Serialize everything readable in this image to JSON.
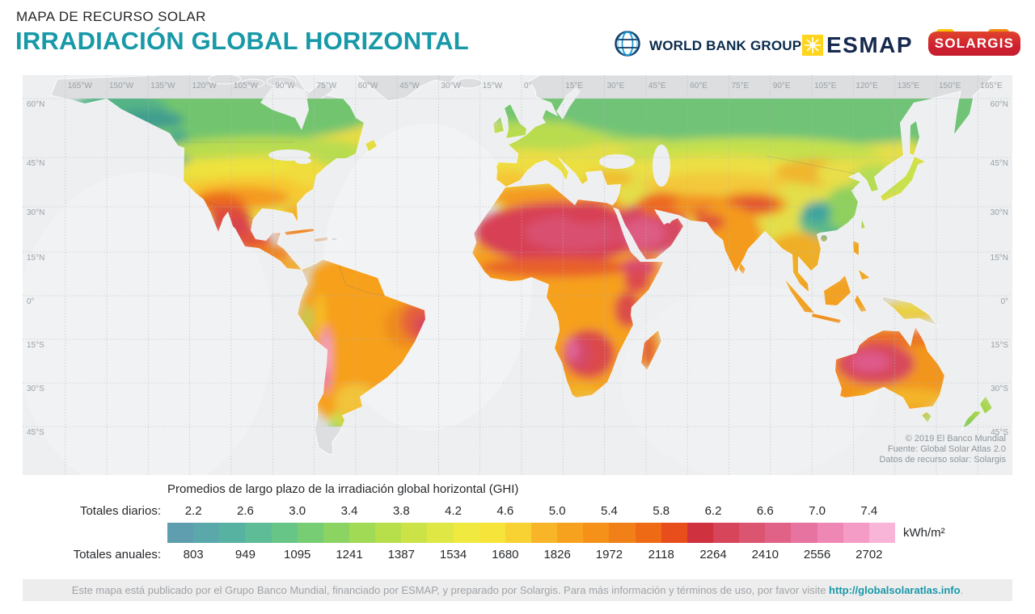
{
  "header": {
    "kicker": "MAPA DE RECURSO SOLAR",
    "title": "IRRADIACIÓN GLOBAL HORIZONTAL"
  },
  "logos": {
    "world_bank": "WORLD BANK GROUP",
    "esmap": "ESMAP",
    "solargis": "SOLARGIS"
  },
  "map": {
    "lon_labels": [
      "165°W",
      "150°W",
      "135°W",
      "120°W",
      "105°W",
      "90°W",
      "75°W",
      "60°W",
      "45°W",
      "30°W",
      "15°W",
      "0°",
      "15°E",
      "30°E",
      "45°E",
      "60°E",
      "75°E",
      "90°E",
      "105°E",
      "120°E",
      "135°E",
      "150°E",
      "165°E"
    ],
    "lat_labels": [
      "60°N",
      "45°N",
      "30°N",
      "15°N",
      "0°",
      "15°S",
      "30°S",
      "45°S"
    ],
    "copyright": [
      "© 2019 El Banco Mundial",
      "Fuente: Global Solar Atlas 2.0",
      "Datos de recurso solar: Solargis"
    ]
  },
  "legend": {
    "title": "Promedios de largo plazo de la irradiación global horizontal (GHI)",
    "daily_label": "Totales diarios:",
    "annual_label": "Totales anuales:",
    "daily_values": [
      "2.2",
      "2.6",
      "3.0",
      "3.4",
      "3.8",
      "4.2",
      "4.6",
      "5.0",
      "5.4",
      "5.8",
      "6.2",
      "6.6",
      "7.0",
      "7.4"
    ],
    "annual_values": [
      "803",
      "949",
      "1095",
      "1241",
      "1387",
      "1534",
      "1680",
      "1826",
      "1972",
      "2118",
      "2264",
      "2410",
      "2556",
      "2702"
    ],
    "unit": "kWh/m²",
    "colors": [
      "#5f9eae",
      "#5aa8a9",
      "#57b2a2",
      "#5ebd97",
      "#67c687",
      "#76cd73",
      "#8bd463",
      "#a1da55",
      "#b6df4b",
      "#cbe346",
      "#dee743",
      "#f0ea40",
      "#f7e43a",
      "#f8d232",
      "#f7b527",
      "#f7a21f",
      "#f59118",
      "#f28019",
      "#ee6a14",
      "#e84e1b",
      "#d0313f",
      "#d6455a",
      "#db5570",
      "#e16287",
      "#e773a0",
      "#ee87b4",
      "#f49cc6",
      "#f9b5d7"
    ]
  },
  "footer": {
    "text": "Este mapa está publicado por el Grupo Banco Mundial, financiado por ESMAP, y preparado por Solargis. Para más información y términos de uso, por favor visite ",
    "link": "http://globalsolaratlas.info",
    "suffix": "."
  },
  "chart_data": {
    "type": "heatmap",
    "title": "Irradiación Global Horizontal (GHI) — promedios de largo plazo",
    "legend_daily_kwh_m2": [
      2.2,
      2.6,
      3.0,
      3.4,
      3.8,
      4.2,
      4.6,
      5.0,
      5.4,
      5.8,
      6.2,
      6.6,
      7.0,
      7.4
    ],
    "legend_annual_kwh_m2": [
      803,
      949,
      1095,
      1241,
      1387,
      1534,
      1680,
      1826,
      1972,
      2118,
      2264,
      2410,
      2556,
      2702
    ],
    "unit": "kWh/m²",
    "coverage": {
      "lat_labels_deg": [
        60,
        45,
        30,
        15,
        0,
        -15,
        -30,
        -45
      ],
      "lon_labels_deg": [
        -165,
        -150,
        -135,
        -120,
        -105,
        -90,
        -75,
        -60,
        -45,
        -30,
        -15,
        0,
        15,
        30,
        45,
        60,
        75,
        90,
        105,
        120,
        135,
        150,
        165
      ]
    }
  }
}
